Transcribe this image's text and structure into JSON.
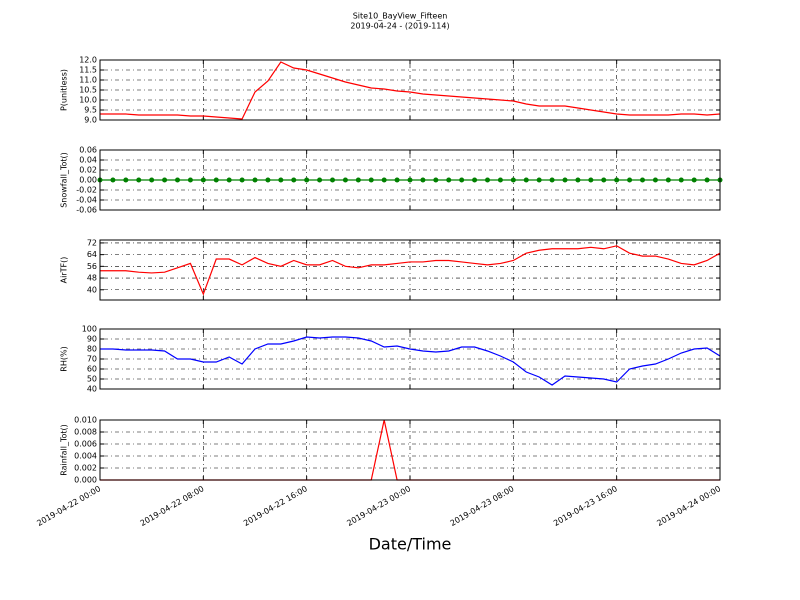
{
  "chart_data": [
    {
      "type": "line",
      "title": "Site10_BayView_Fifteen",
      "subtitle": "2019-04-24 - (2019-114)",
      "ylabel": "P(unitless)",
      "x": [
        "2019-04-22 00:00",
        "2019-04-22 01:00",
        "2019-04-22 02:00",
        "2019-04-22 03:00",
        "2019-04-22 04:00",
        "2019-04-22 05:00",
        "2019-04-22 06:00",
        "2019-04-22 07:00",
        "2019-04-22 08:00",
        "2019-04-22 09:00",
        "2019-04-22 10:00",
        "2019-04-22 11:00",
        "2019-04-22 12:00",
        "2019-04-22 13:00",
        "2019-04-22 14:00",
        "2019-04-22 15:00",
        "2019-04-22 16:00",
        "2019-04-22 17:00",
        "2019-04-22 18:00",
        "2019-04-22 19:00",
        "2019-04-22 20:00",
        "2019-04-22 21:00",
        "2019-04-22 22:00",
        "2019-04-22 23:00",
        "2019-04-23 00:00",
        "2019-04-23 01:00",
        "2019-04-23 02:00",
        "2019-04-23 03:00",
        "2019-04-23 04:00",
        "2019-04-23 05:00",
        "2019-04-23 06:00",
        "2019-04-23 07:00",
        "2019-04-23 08:00",
        "2019-04-23 09:00",
        "2019-04-23 10:00",
        "2019-04-23 11:00",
        "2019-04-23 12:00",
        "2019-04-23 13:00",
        "2019-04-23 14:00",
        "2019-04-23 15:00",
        "2019-04-23 16:00",
        "2019-04-23 17:00",
        "2019-04-23 18:00",
        "2019-04-23 19:00",
        "2019-04-23 20:00",
        "2019-04-23 21:00",
        "2019-04-23 22:00",
        "2019-04-23 23:00",
        "2019-04-24 00:00"
      ],
      "series": [
        {
          "color": "#ff0000",
          "values": [
            9.3,
            9.3,
            9.3,
            9.25,
            9.25,
            9.25,
            9.25,
            9.2,
            9.2,
            9.15,
            9.1,
            9.05,
            10.4,
            10.95,
            11.9,
            11.6,
            11.5,
            11.3,
            11.1,
            10.9,
            10.75,
            10.6,
            10.55,
            10.45,
            10.4,
            10.3,
            10.25,
            10.2,
            10.15,
            10.1,
            10.05,
            10.0,
            9.95,
            9.8,
            9.7,
            9.7,
            9.7,
            9.6,
            9.5,
            9.4,
            9.3,
            9.25,
            9.25,
            9.25,
            9.25,
            9.3,
            9.3,
            9.25,
            9.3
          ]
        }
      ],
      "xlim": [
        "2019-04-22 00:00",
        "2019-04-24 00:00"
      ],
      "xticks": [
        "2019-04-22 00:00",
        "2019-04-22 08:00",
        "2019-04-22 16:00",
        "2019-04-23 00:00",
        "2019-04-23 08:00",
        "2019-04-23 16:00",
        "2019-04-24 00:00"
      ],
      "ylim": [
        9,
        12
      ],
      "yticks": [
        {
          "value": 9,
          "label": "9.0"
        },
        9.5,
        {
          "value": 10,
          "label": "10.0"
        },
        10.5,
        {
          "value": 11,
          "label": "11.0"
        },
        11.5,
        {
          "value": 12,
          "label": "12.0"
        }
      ],
      "grid": true
    },
    {
      "type": "line",
      "ylabel": "Snowfall_Tot()",
      "markers": true,
      "x": [
        "2019-04-22 00:00",
        "2019-04-22 01:00",
        "2019-04-22 02:00",
        "2019-04-22 03:00",
        "2019-04-22 04:00",
        "2019-04-22 05:00",
        "2019-04-22 06:00",
        "2019-04-22 07:00",
        "2019-04-22 08:00",
        "2019-04-22 09:00",
        "2019-04-22 10:00",
        "2019-04-22 11:00",
        "2019-04-22 12:00",
        "2019-04-22 13:00",
        "2019-04-22 14:00",
        "2019-04-22 15:00",
        "2019-04-22 16:00",
        "2019-04-22 17:00",
        "2019-04-22 18:00",
        "2019-04-22 19:00",
        "2019-04-22 20:00",
        "2019-04-22 21:00",
        "2019-04-22 22:00",
        "2019-04-22 23:00",
        "2019-04-23 00:00",
        "2019-04-23 01:00",
        "2019-04-23 02:00",
        "2019-04-23 03:00",
        "2019-04-23 04:00",
        "2019-04-23 05:00",
        "2019-04-23 06:00",
        "2019-04-23 07:00",
        "2019-04-23 08:00",
        "2019-04-23 09:00",
        "2019-04-23 10:00",
        "2019-04-23 11:00",
        "2019-04-23 12:00",
        "2019-04-23 13:00",
        "2019-04-23 14:00",
        "2019-04-23 15:00",
        "2019-04-23 16:00",
        "2019-04-23 17:00",
        "2019-04-23 18:00",
        "2019-04-23 19:00",
        "2019-04-23 20:00",
        "2019-04-23 21:00",
        "2019-04-23 22:00",
        "2019-04-23 23:00",
        "2019-04-24 00:00"
      ],
      "series": [
        {
          "color": "#008000",
          "values": [
            0,
            0,
            0,
            0,
            0,
            0,
            0,
            0,
            0,
            0,
            0,
            0,
            0,
            0,
            0,
            0,
            0,
            0,
            0,
            0,
            0,
            0,
            0,
            0,
            0,
            0,
            0,
            0,
            0,
            0,
            0,
            0,
            0,
            0,
            0,
            0,
            0,
            0,
            0,
            0,
            0,
            0,
            0,
            0,
            0,
            0,
            0,
            0,
            0
          ]
        }
      ],
      "xlim": [
        "2019-04-22 00:00",
        "2019-04-24 00:00"
      ],
      "xticks": [
        "2019-04-22 00:00",
        "2019-04-22 08:00",
        "2019-04-22 16:00",
        "2019-04-23 00:00",
        "2019-04-23 08:00",
        "2019-04-23 16:00",
        "2019-04-24 00:00"
      ],
      "ylim": [
        -0.06,
        0.06
      ],
      "yticks": [
        -0.06,
        -0.04,
        -0.02,
        {
          "value": 0,
          "label": "0.00"
        },
        0.02,
        0.04,
        0.06
      ],
      "grid": true
    },
    {
      "type": "line",
      "ylabel": "AirTF()",
      "x": [
        "2019-04-22 00:00",
        "2019-04-22 01:00",
        "2019-04-22 02:00",
        "2019-04-22 03:00",
        "2019-04-22 04:00",
        "2019-04-22 05:00",
        "2019-04-22 06:00",
        "2019-04-22 07:00",
        "2019-04-22 08:00",
        "2019-04-22 09:00",
        "2019-04-22 10:00",
        "2019-04-22 11:00",
        "2019-04-22 12:00",
        "2019-04-22 13:00",
        "2019-04-22 14:00",
        "2019-04-22 15:00",
        "2019-04-22 16:00",
        "2019-04-22 17:00",
        "2019-04-22 18:00",
        "2019-04-22 19:00",
        "2019-04-22 20:00",
        "2019-04-22 21:00",
        "2019-04-22 22:00",
        "2019-04-22 23:00",
        "2019-04-23 00:00",
        "2019-04-23 01:00",
        "2019-04-23 02:00",
        "2019-04-23 03:00",
        "2019-04-23 04:00",
        "2019-04-23 05:00",
        "2019-04-23 06:00",
        "2019-04-23 07:00",
        "2019-04-23 08:00",
        "2019-04-23 09:00",
        "2019-04-23 10:00",
        "2019-04-23 11:00",
        "2019-04-23 12:00",
        "2019-04-23 13:00",
        "2019-04-23 14:00",
        "2019-04-23 15:00",
        "2019-04-23 16:00",
        "2019-04-23 17:00",
        "2019-04-23 18:00",
        "2019-04-23 19:00",
        "2019-04-23 20:00",
        "2019-04-23 21:00",
        "2019-04-23 22:00",
        "2019-04-23 23:00",
        "2019-04-24 00:00"
      ],
      "series": [
        {
          "color": "#ff0000",
          "values": [
            53,
            53,
            53,
            52,
            51.5,
            52,
            55,
            58,
            37,
            61,
            61,
            57,
            62,
            58,
            56,
            60,
            57,
            57,
            60,
            56,
            55,
            57,
            57,
            58,
            59,
            59,
            60,
            60,
            59,
            58,
            57,
            58,
            60,
            65,
            67,
            68,
            68,
            68,
            69,
            68,
            70,
            65,
            63,
            63,
            61,
            58,
            57,
            60,
            65
          ]
        }
      ],
      "xlim": [
        "2019-04-22 00:00",
        "2019-04-24 00:00"
      ],
      "xticks": [
        "2019-04-22 00:00",
        "2019-04-22 08:00",
        "2019-04-22 16:00",
        "2019-04-23 00:00",
        "2019-04-23 08:00",
        "2019-04-23 16:00",
        "2019-04-24 00:00"
      ],
      "ylim": [
        33,
        74
      ],
      "yticks": [
        40,
        48,
        56,
        64,
        72
      ],
      "grid": true
    },
    {
      "type": "line",
      "ylabel": "RH(%)",
      "x": [
        "2019-04-22 00:00",
        "2019-04-22 01:00",
        "2019-04-22 02:00",
        "2019-04-22 03:00",
        "2019-04-22 04:00",
        "2019-04-22 05:00",
        "2019-04-22 06:00",
        "2019-04-22 07:00",
        "2019-04-22 08:00",
        "2019-04-22 09:00",
        "2019-04-22 10:00",
        "2019-04-22 11:00",
        "2019-04-22 12:00",
        "2019-04-22 13:00",
        "2019-04-22 14:00",
        "2019-04-22 15:00",
        "2019-04-22 16:00",
        "2019-04-22 17:00",
        "2019-04-22 18:00",
        "2019-04-22 19:00",
        "2019-04-22 20:00",
        "2019-04-22 21:00",
        "2019-04-22 22:00",
        "2019-04-22 23:00",
        "2019-04-23 00:00",
        "2019-04-23 01:00",
        "2019-04-23 02:00",
        "2019-04-23 03:00",
        "2019-04-23 04:00",
        "2019-04-23 05:00",
        "2019-04-23 06:00",
        "2019-04-23 07:00",
        "2019-04-23 08:00",
        "2019-04-23 09:00",
        "2019-04-23 10:00",
        "2019-04-23 11:00",
        "2019-04-23 12:00",
        "2019-04-23 13:00",
        "2019-04-23 14:00",
        "2019-04-23 15:00",
        "2019-04-23 16:00",
        "2019-04-23 17:00",
        "2019-04-23 18:00",
        "2019-04-23 19:00",
        "2019-04-23 20:00",
        "2019-04-23 21:00",
        "2019-04-23 22:00",
        "2019-04-23 23:00",
        "2019-04-24 00:00"
      ],
      "series": [
        {
          "color": "#0000ff",
          "values": [
            80,
            80,
            79,
            79,
            79,
            78,
            70,
            70,
            67,
            67,
            72,
            65,
            80,
            85,
            85,
            88,
            92,
            91,
            92,
            92,
            91,
            88,
            82,
            83,
            80,
            78,
            77,
            78,
            82,
            82,
            78,
            73,
            67,
            57,
            52,
            44,
            53,
            52,
            51,
            50,
            47,
            60,
            63,
            65,
            70,
            76,
            80,
            81,
            73
          ]
        }
      ],
      "xlim": [
        "2019-04-22 00:00",
        "2019-04-24 00:00"
      ],
      "xticks": [
        "2019-04-22 00:00",
        "2019-04-22 08:00",
        "2019-04-22 16:00",
        "2019-04-23 00:00",
        "2019-04-23 08:00",
        "2019-04-23 16:00",
        "2019-04-24 00:00"
      ],
      "ylim": [
        40,
        100
      ],
      "yticks": [
        40,
        50,
        60,
        70,
        80,
        90,
        100
      ],
      "grid": true
    },
    {
      "type": "line",
      "ylabel": "Rainfall_Tot()",
      "xlabel": "Date/Time",
      "x": [
        "2019-04-22 00:00",
        "2019-04-22 01:00",
        "2019-04-22 02:00",
        "2019-04-22 03:00",
        "2019-04-22 04:00",
        "2019-04-22 05:00",
        "2019-04-22 06:00",
        "2019-04-22 07:00",
        "2019-04-22 08:00",
        "2019-04-22 09:00",
        "2019-04-22 10:00",
        "2019-04-22 11:00",
        "2019-04-22 12:00",
        "2019-04-22 13:00",
        "2019-04-22 14:00",
        "2019-04-22 15:00",
        "2019-04-22 16:00",
        "2019-04-22 17:00",
        "2019-04-22 18:00",
        "2019-04-22 19:00",
        "2019-04-22 20:00",
        "2019-04-22 21:00",
        "2019-04-22 22:00",
        "2019-04-22 23:00",
        "2019-04-23 00:00",
        "2019-04-23 01:00",
        "2019-04-23 02:00",
        "2019-04-23 03:00",
        "2019-04-23 04:00",
        "2019-04-23 05:00",
        "2019-04-23 06:00",
        "2019-04-23 07:00",
        "2019-04-23 08:00",
        "2019-04-23 09:00",
        "2019-04-23 10:00",
        "2019-04-23 11:00",
        "2019-04-23 12:00",
        "2019-04-23 13:00",
        "2019-04-23 14:00",
        "2019-04-23 15:00",
        "2019-04-23 16:00",
        "2019-04-23 17:00",
        "2019-04-23 18:00",
        "2019-04-23 19:00",
        "2019-04-23 20:00",
        "2019-04-23 21:00",
        "2019-04-23 22:00",
        "2019-04-23 23:00",
        "2019-04-24 00:00"
      ],
      "series": [
        {
          "color": "#ff0000",
          "values": [
            0,
            0,
            0,
            0,
            0,
            0,
            0,
            0,
            0,
            0,
            0,
            0,
            0,
            0,
            0,
            0,
            0,
            0,
            0,
            0,
            0,
            0,
            0.01,
            0,
            0,
            0,
            0,
            0,
            0,
            0,
            0,
            0,
            0,
            0,
            0,
            0,
            0,
            0,
            0,
            0,
            0,
            0,
            0,
            0,
            0,
            0,
            0,
            0,
            0
          ]
        }
      ],
      "xlim": [
        "2019-04-22 00:00",
        "2019-04-24 00:00"
      ],
      "xticks": [
        "2019-04-22 00:00",
        "2019-04-22 08:00",
        "2019-04-22 16:00",
        "2019-04-23 00:00",
        "2019-04-23 08:00",
        "2019-04-23 16:00",
        "2019-04-24 00:00"
      ],
      "show_xtick_labels": true,
      "ylim": [
        0,
        0.01
      ],
      "yticks": [
        {
          "value": 0,
          "label": "0.000"
        },
        {
          "value": 0.002,
          "label": "0.002"
        },
        {
          "value": 0.004,
          "label": "0.004"
        },
        {
          "value": 0.006,
          "label": "0.006"
        },
        {
          "value": 0.008,
          "label": "0.008"
        },
        {
          "value": 0.01,
          "label": "0.010"
        }
      ],
      "grid": true
    }
  ]
}
